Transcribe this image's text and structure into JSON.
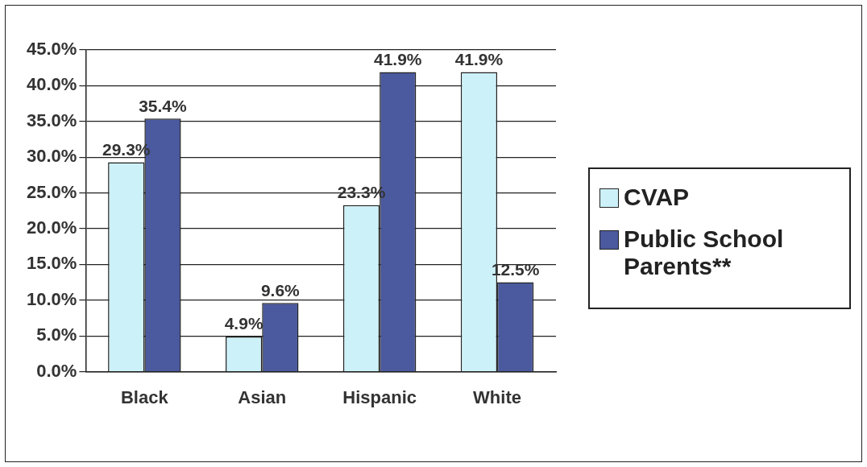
{
  "chart_data": {
    "type": "bar",
    "categories": [
      "Black",
      "Asian",
      "Hispanic",
      "White"
    ],
    "series": [
      {
        "name": "CVAP",
        "color": "#cdf1f9",
        "values": [
          29.3,
          4.9,
          23.3,
          41.9
        ],
        "value_labels": [
          "29.3%",
          "4.9%",
          "23.3%",
          "41.9%"
        ]
      },
      {
        "name": "Public School Parents**",
        "color": "#4b5a9e",
        "values": [
          35.4,
          9.6,
          41.9,
          12.5
        ],
        "value_labels": [
          "35.4%",
          "9.6%",
          "41.9%",
          "12.5%"
        ]
      }
    ],
    "ylim": [
      0,
      45
    ],
    "yticks": [
      {
        "value": 0,
        "label": "0.0%"
      },
      {
        "value": 5,
        "label": "5.0%"
      },
      {
        "value": 10,
        "label": "10.0%"
      },
      {
        "value": 15,
        "label": "15.0%"
      },
      {
        "value": 20,
        "label": "20.0%"
      },
      {
        "value": 25,
        "label": "25.0%"
      },
      {
        "value": 30,
        "label": "30.0%"
      },
      {
        "value": 35,
        "label": "35.0%"
      },
      {
        "value": 40,
        "label": "40.0%"
      },
      {
        "value": 45,
        "label": "45.0%"
      }
    ],
    "grid": "y",
    "legend": "right"
  }
}
